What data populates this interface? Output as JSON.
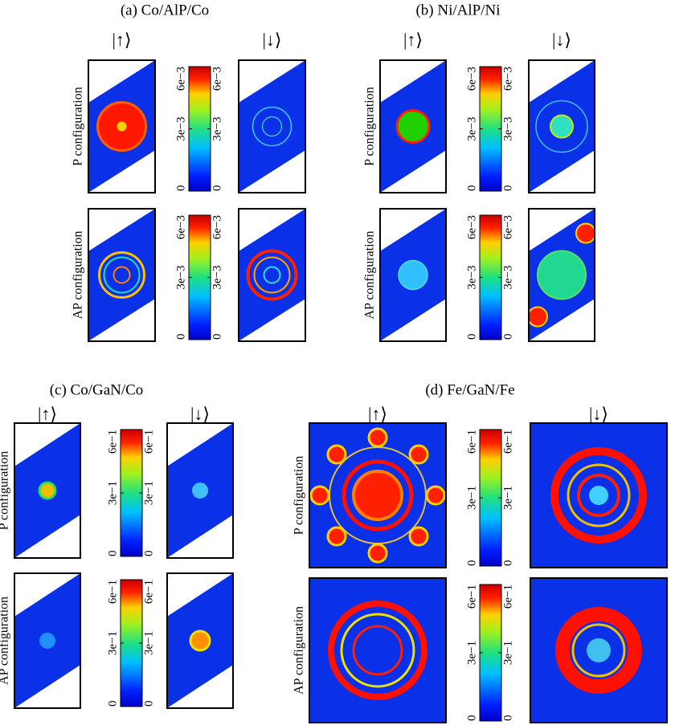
{
  "chart_data": [
    {
      "type": "heatmap",
      "title": "(a) Co/AlP/Co",
      "columns": [
        "|↑⟩",
        "|↓⟩"
      ],
      "rows": [
        "P configuration",
        "AP configuration"
      ],
      "clim": [
        0,
        0.006
      ],
      "cticks": [
        0,
        {
          "value": 0.003,
          "label": "3e−3"
        },
        {
          "value": 0.006,
          "label": "6e−3"
        }
      ]
    },
    {
      "type": "heatmap",
      "title": "(b) Ni/AlP/Ni",
      "columns": [
        "|↑⟩",
        "|↓⟩"
      ],
      "rows": [
        "P configuration",
        "AP configuration"
      ],
      "clim": [
        0,
        0.006
      ],
      "cticks": [
        0,
        {
          "value": 0.003,
          "label": "3e−3"
        },
        {
          "value": 0.006,
          "label": "6e−3"
        }
      ]
    },
    {
      "type": "heatmap",
      "title": "(c) Co/GaN/Co",
      "columns": [
        "|↑⟩",
        "|↓⟩"
      ],
      "rows": [
        "P configuration",
        "AP configuration"
      ],
      "clim": [
        0,
        0.6
      ],
      "cticks": [
        0,
        {
          "value": 0.3,
          "label": "3e−1"
        },
        {
          "value": 0.6,
          "label": "6e−1"
        }
      ]
    },
    {
      "type": "heatmap",
      "title": "(d) Fe/GaN/Fe",
      "columns": [
        "|↑⟩",
        "|↓⟩"
      ],
      "rows": [
        "P configuration",
        "AP configuration"
      ],
      "clim": [
        0,
        0.6
      ],
      "cticks": [
        0,
        {
          "value": 0.3,
          "label": "3e−1"
        },
        {
          "value": 0.6,
          "label": "6e−1"
        }
      ]
    }
  ]
}
